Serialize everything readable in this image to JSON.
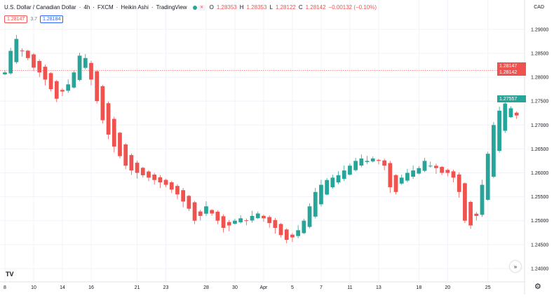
{
  "legend": {
    "pair": "U.S. Dollar / Canadian Dollar",
    "interval": "4h",
    "source": "FXCM",
    "chart_style": "Heikin Ashi",
    "provider": "TradingView",
    "open_key": "O",
    "open_val": "1.28353",
    "high_key": "H",
    "high_val": "1.28353",
    "low_key": "L",
    "low_val": "1.28122",
    "close_key": "C",
    "close_val": "1.28142",
    "change": "−0.00132 (−0.10%)"
  },
  "spread": {
    "sell": "1.28147",
    "mid": "3.7",
    "buy": "1.28184"
  },
  "currency": "CAD",
  "price_axis": {
    "ticks": [
      "1.29000",
      "1.28500",
      "1.28000",
      "1.27500",
      "1.27000",
      "1.26500",
      "1.26000",
      "1.25500",
      "1.25000",
      "1.24500",
      "1.24000"
    ],
    "tags": {
      "bid": "1.28147",
      "close": "1.28142",
      "ha_close": "1.27557"
    }
  },
  "time_axis": {
    "labels": [
      "8",
      "10",
      "14",
      "16",
      "21",
      "23",
      "28",
      "30",
      "Apr",
      "5",
      "7",
      "11",
      "13",
      "18",
      "20",
      "25"
    ]
  },
  "logo": "TV",
  "scroll_icon": "double-chevron-right-icon",
  "settings_icon": "gear-icon",
  "colors": {
    "up": "#26a69a",
    "down": "#ef5350",
    "grid": "#f0f3fa",
    "axis_text": "#131722"
  },
  "chart_data": {
    "type": "candlestick",
    "style": "Heikin Ashi",
    "ylim": [
      1.2375,
      1.2935
    ],
    "x": [
      "8",
      "10",
      "14",
      "16",
      "21",
      "23",
      "28",
      "30",
      "Apr",
      "5",
      "7",
      "11",
      "13",
      "18",
      "20",
      "25"
    ],
    "x_positions": [
      0,
      5,
      10,
      15,
      23,
      28,
      35,
      40,
      45,
      50,
      55,
      60,
      65,
      72,
      77,
      84
    ],
    "series_anchors": [
      [
        0,
        1.281
      ],
      [
        1,
        1.2855
      ],
      [
        2,
        1.288
      ],
      [
        3,
        1.2855
      ],
      [
        4,
        1.284
      ],
      [
        5,
        1.282
      ],
      [
        6,
        1.281
      ],
      [
        7,
        1.2795
      ],
      [
        8,
        1.2775
      ],
      [
        9,
        1.2755
      ],
      [
        10,
        1.277
      ],
      [
        11,
        1.2785
      ],
      [
        12,
        1.281
      ],
      [
        13,
        1.2845
      ],
      [
        14,
        1.284
      ],
      [
        15,
        1.2795
      ],
      [
        16,
        1.275
      ],
      [
        17,
        1.271
      ],
      [
        18,
        1.268
      ],
      [
        19,
        1.2655
      ],
      [
        20,
        1.2635
      ],
      [
        21,
        1.2615
      ],
      [
        22,
        1.2605
      ],
      [
        23,
        1.26
      ],
      [
        24,
        1.2595
      ],
      [
        25,
        1.259
      ],
      [
        26,
        1.2585
      ],
      [
        27,
        1.258
      ],
      [
        28,
        1.2575
      ],
      [
        29,
        1.2565
      ],
      [
        30,
        1.2555
      ],
      [
        31,
        1.254
      ],
      [
        32,
        1.2525
      ],
      [
        33,
        1.25
      ],
      [
        34,
        1.251
      ],
      [
        35,
        1.253
      ],
      [
        36,
        1.2515
      ],
      [
        37,
        1.25
      ],
      [
        38,
        1.2485
      ],
      [
        39,
        1.249
      ],
      [
        40,
        1.25
      ],
      [
        41,
        1.2505
      ],
      [
        42,
        1.25
      ],
      [
        43,
        1.251
      ],
      [
        44,
        1.2515
      ],
      [
        45,
        1.2505
      ],
      [
        46,
        1.2495
      ],
      [
        47,
        1.2485
      ],
      [
        48,
        1.247
      ],
      [
        49,
        1.246
      ],
      [
        50,
        1.2465
      ],
      [
        51,
        1.248
      ],
      [
        52,
        1.25
      ],
      [
        53,
        1.253
      ],
      [
        54,
        1.256
      ],
      [
        55,
        1.2575
      ],
      [
        56,
        1.2585
      ],
      [
        57,
        1.259
      ],
      [
        58,
        1.2595
      ],
      [
        59,
        1.2605
      ],
      [
        60,
        1.2615
      ],
      [
        61,
        1.2625
      ],
      [
        62,
        1.263
      ],
      [
        63,
        1.2625
      ],
      [
        64,
        1.263
      ],
      [
        65,
        1.2625
      ],
      [
        66,
        1.2615
      ],
      [
        67,
        1.257
      ],
      [
        68,
        1.256
      ],
      [
        69,
        1.259
      ],
      [
        70,
        1.26
      ],
      [
        71,
        1.2605
      ],
      [
        72,
        1.261
      ],
      [
        73,
        1.2625
      ],
      [
        74,
        1.2615
      ],
      [
        75,
        1.261
      ],
      [
        76,
        1.26
      ],
      [
        77,
        1.26
      ],
      [
        78,
        1.259
      ],
      [
        79,
        1.256
      ],
      [
        80,
        1.25
      ],
      [
        81,
        1.249
      ],
      [
        82,
        1.251
      ],
      [
        83,
        1.2575
      ],
      [
        84,
        1.264
      ],
      [
        85,
        1.27
      ],
      [
        86,
        1.273
      ],
      [
        87,
        1.2745
      ],
      [
        88,
        1.2735
      ],
      [
        89,
        1.272
      ]
    ]
  }
}
